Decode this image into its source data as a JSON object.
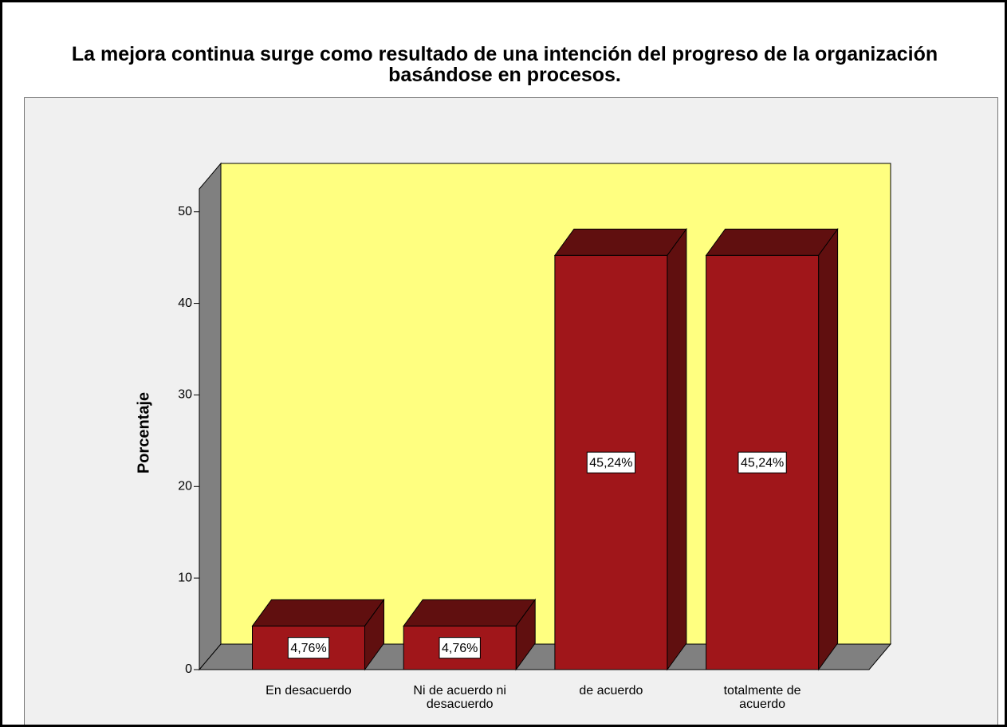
{
  "chart_data": {
    "type": "bar3d",
    "title": "La mejora continua surge como resultado de una intención del progreso de la organización basándose en procesos.",
    "ylabel": "Porcentaje",
    "categories": [
      "En desacuerdo",
      "Ni de acuerdo ni desacuerdo",
      "de acuerdo",
      "totalmente de acuerdo"
    ],
    "values": [
      4.76,
      4.76,
      45.24,
      45.24
    ],
    "value_labels": [
      "4,76%",
      "4,76%",
      "45,24%",
      "45,24%"
    ],
    "color": "#a0161a",
    "ylim": [
      0,
      52.5
    ],
    "yticks": [
      0,
      10,
      20,
      30,
      40,
      50
    ]
  }
}
